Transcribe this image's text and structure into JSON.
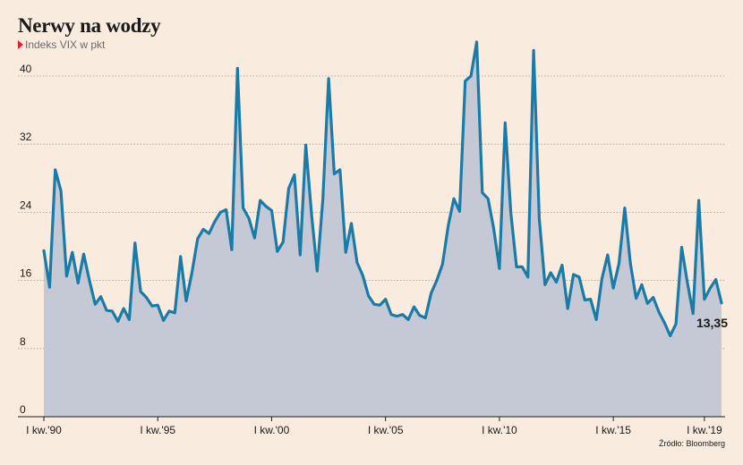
{
  "title": "Nerwy na wodzy",
  "subtitle": "Indeks VIX w pkt",
  "source": "Źródło: Bloomberg",
  "colors": {
    "line": "#1a7ba6",
    "area": "#c5c9d6",
    "marker": "#e4202b"
  },
  "chart_data": {
    "type": "area",
    "title": "Nerwy na wodzy",
    "subtitle": "Indeks VIX w pkt",
    "ylim": [
      0,
      40
    ],
    "yticks": [
      0,
      8,
      16,
      24,
      32,
      40
    ],
    "grid": true,
    "xtick_labels": [
      "I kw.'90",
      "I kw.'95",
      "I kw.'00",
      "I kw.'05",
      "I kw.'10",
      "I kw.'15",
      "I kw.'19"
    ],
    "last_value_label": "13,35",
    "series": [
      {
        "values": [
          19.5,
          15.2,
          29.0,
          26.5,
          16.5,
          19.3,
          15.7,
          19.1,
          16.0,
          13.2,
          14.1,
          12.5,
          12.4,
          11.2,
          12.7,
          11.4,
          20.4,
          14.7,
          14.0,
          13.0,
          13.1,
          11.3,
          12.4,
          12.2,
          18.8,
          13.6,
          16.9,
          20.9,
          22.0,
          21.5,
          22.9,
          24.0,
          24.3,
          19.6,
          40.9,
          24.5,
          23.3,
          21.0,
          25.4,
          24.7,
          24.2,
          19.4,
          20.5,
          26.8,
          28.4,
          19.0,
          31.9,
          23.8,
          17.1,
          25.6,
          39.7,
          28.5,
          29.0,
          19.3,
          22.7,
          18.1,
          16.6,
          14.2,
          13.2,
          13.1,
          13.8,
          12.0,
          11.8,
          12.0,
          11.4,
          12.9,
          11.9,
          11.6,
          14.5,
          16.0,
          17.9,
          22.4,
          25.6,
          24.1,
          39.4,
          40.0,
          44.0,
          26.3,
          25.6,
          22.1,
          17.4,
          34.5,
          24.0,
          17.6,
          17.6,
          16.4,
          43.0,
          23.3,
          15.5,
          16.9,
          15.8,
          17.8,
          12.7,
          16.7,
          16.4,
          13.7,
          13.8,
          11.4,
          16.2,
          19.0,
          15.1,
          18.0,
          24.5,
          18.0,
          13.9,
          15.5,
          13.3,
          14.0,
          12.3,
          11.0,
          9.5,
          10.9,
          19.9,
          15.8,
          12.1,
          25.4,
          13.8,
          15.1,
          16.1,
          13.35
        ]
      }
    ]
  }
}
